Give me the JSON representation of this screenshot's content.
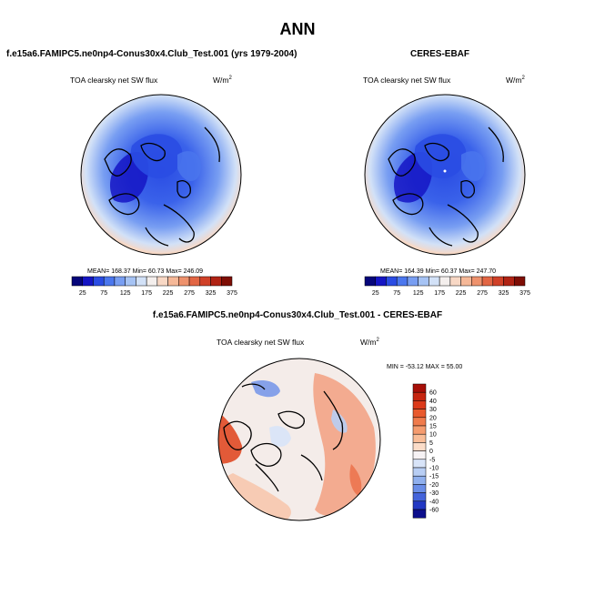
{
  "main_title": "ANN",
  "panels": [
    {
      "title": "f.e15a6.FAMIPC5.ne0np4-Conus30x4.Club_Test.001 (yrs 1979-2004)",
      "variable": "TOA clearsky net SW flux",
      "units": "W/m",
      "units_exp": "2",
      "stats": "MEAN= 168.37  Min=  60.73  Max= 246.09"
    },
    {
      "title": "CERES-EBAF",
      "variable": "TOA clearsky net SW flux",
      "units": "W/m",
      "units_exp": "2",
      "stats": "MEAN= 164.39  Min=  60.37  Max= 247.70"
    },
    {
      "title": "f.e15a6.FAMIPC5.ne0np4-Conus30x4.Club_Test.001 - CERES-EBAF",
      "variable": "TOA clearsky net SW flux",
      "units": "W/m",
      "units_exp": "2",
      "stats": "MIN = -53.12 MAX =  55.00"
    }
  ],
  "chart_data": [
    {
      "type": "heatmap",
      "title": "f.e15a6.FAMIPC5.ne0np4-Conus30x4.Club_Test.001 (yrs 1979-2004)",
      "projection": "north-polar-stereographic",
      "mean": 168.37,
      "min": 60.73,
      "max": 246.09,
      "colorbar_labels": [
        "25",
        "75",
        "125",
        "175",
        "225",
        "275",
        "325",
        "375"
      ],
      "colorbar_colors": [
        "#06067a",
        "#1515c4",
        "#2a4ce3",
        "#4b77ee",
        "#789ef2",
        "#a6c3f4",
        "#d2e1f7",
        "#f4efed",
        "#f8d8c5",
        "#f5b898",
        "#ee926d",
        "#e26644",
        "#d04128",
        "#b02314",
        "#7e0e05"
      ]
    },
    {
      "type": "heatmap",
      "title": "CERES-EBAF",
      "projection": "north-polar-stereographic",
      "mean": 164.39,
      "min": 60.37,
      "max": 247.7,
      "colorbar_labels": [
        "25",
        "75",
        "125",
        "175",
        "225",
        "275",
        "325",
        "375"
      ]
    },
    {
      "type": "heatmap",
      "title": "f.e15a6.FAMIPC5.ne0np4-Conus30x4.Club_Test.001 - CERES-EBAF",
      "projection": "north-polar-stereographic",
      "min": -53.12,
      "max": 55.0,
      "colorbar_labels": [
        "60",
        "40",
        "30",
        "20",
        "15",
        "10",
        "5",
        "0",
        "-5",
        "-10",
        "-15",
        "-20",
        "-30",
        "-40",
        "-60"
      ],
      "colorbar_colors": [
        "#a70f08",
        "#c62510",
        "#dc3a1a",
        "#e95a2e",
        "#f07b4c",
        "#f59c6f",
        "#f9bd98",
        "#fbdcc8",
        "#f6f2f4",
        "#d8e4f8",
        "#b8cef4",
        "#90b0ee",
        "#6a8ee8",
        "#4464db",
        "#2238c3",
        "#0d0f8c"
      ]
    }
  ]
}
